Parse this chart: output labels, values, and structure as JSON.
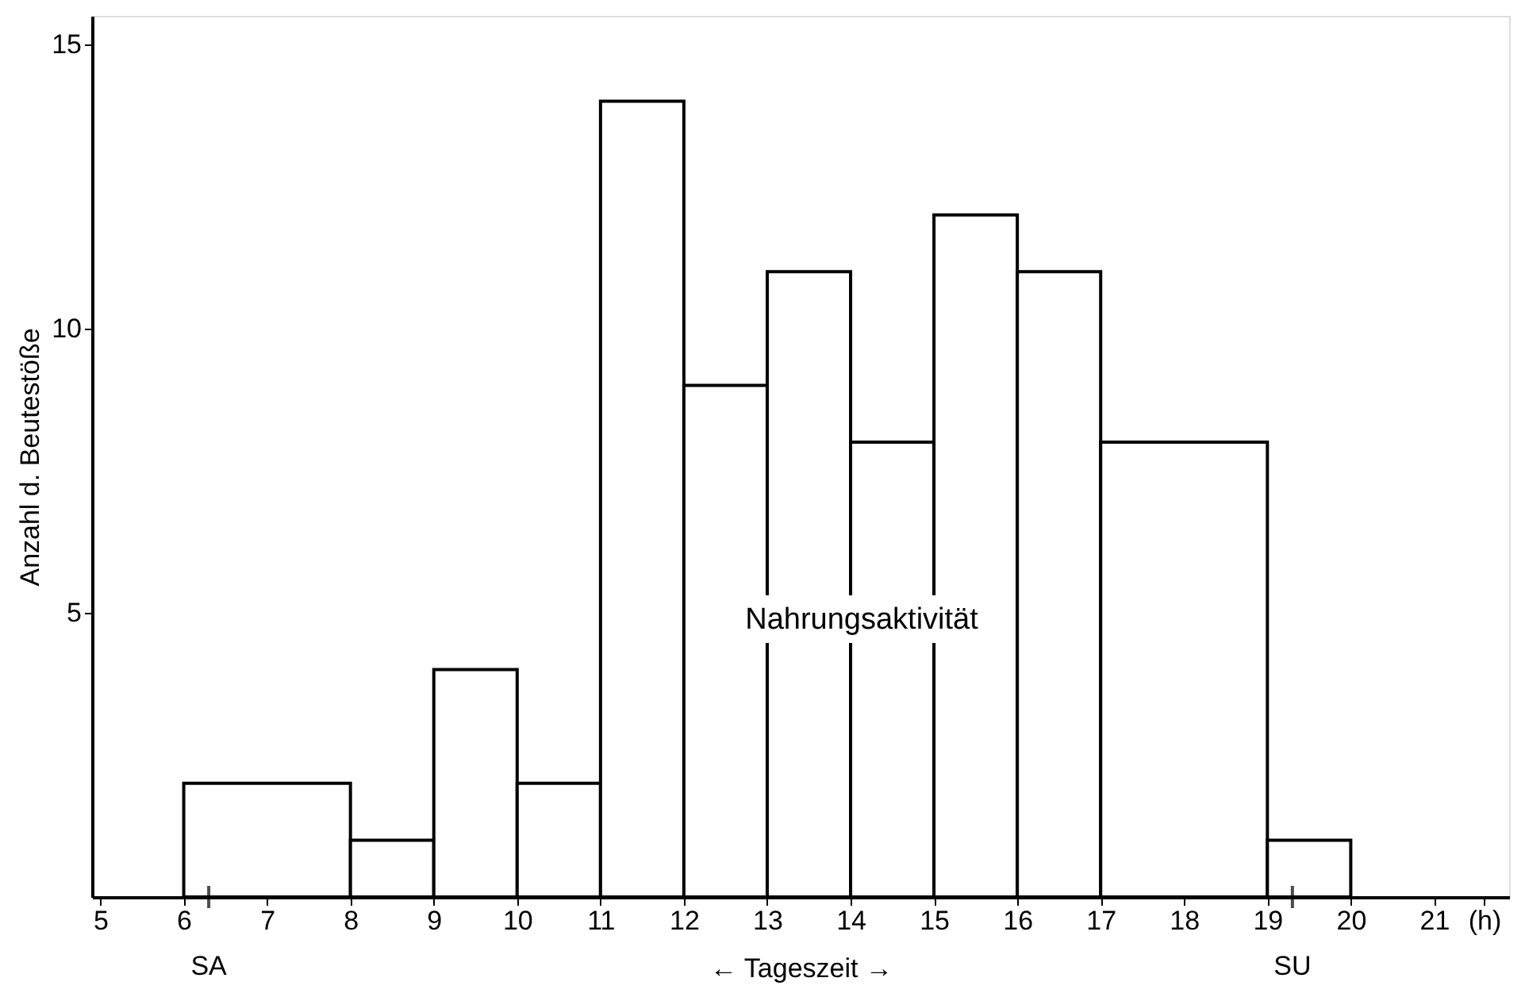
{
  "chart_data": {
    "type": "histogram",
    "bins": [
      6,
      8,
      9,
      10,
      11,
      12,
      13,
      14,
      15,
      16,
      17,
      19,
      20
    ],
    "values": [
      2,
      1,
      4,
      2,
      14,
      9,
      11,
      8,
      12,
      11,
      8,
      1
    ],
    "color": "#ffffff",
    "xlabel": "← Tageszeit →",
    "ylabel": "Anzahl d. Beutestöße",
    "xlim": [
      4.9,
      21.9
    ],
    "xticks": [
      5,
      6,
      7,
      8,
      9,
      10,
      11,
      12,
      13,
      14,
      15,
      16,
      17,
      18,
      19,
      20,
      21,
      {
        "value": 21.6,
        "label": "(h)"
      }
    ],
    "ylim": [
      0,
      15.5
    ],
    "yticks": [
      5,
      10,
      15
    ],
    "grid": false,
    "annotations": [
      {
        "text": "SA",
        "x": 6.3,
        "y": 0
      },
      {
        "text": "SU",
        "x": 19.3,
        "y": 0
      },
      "Nahrungsaktivität"
    ]
  }
}
